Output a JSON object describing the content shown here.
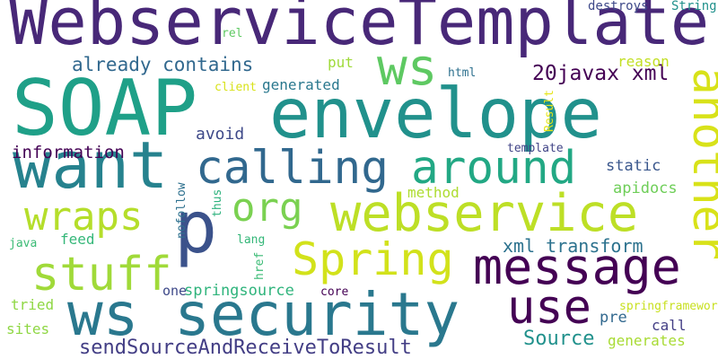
{
  "words": [
    {
      "text": "WebserviceTemplate",
      "color": "#482878"
    },
    {
      "text": "SOAP",
      "color": "#1fa088"
    },
    {
      "text": "envelope",
      "color": "#21918c"
    },
    {
      "text": "want",
      "color": "#26828e"
    },
    {
      "text": "ws security",
      "color": "#2a788e"
    },
    {
      "text": "webservice",
      "color": "#bddf26"
    },
    {
      "text": "message",
      "color": "#440154"
    },
    {
      "text": "p",
      "color": "#3b528b"
    },
    {
      "text": "ws",
      "color": "#5ec962"
    },
    {
      "text": "calling",
      "color": "#31688e"
    },
    {
      "text": "around",
      "color": "#22a884"
    },
    {
      "text": "another",
      "color": "#d8e219"
    },
    {
      "text": "Spring",
      "color": "#d2e21b"
    },
    {
      "text": "stuff",
      "color": "#a0da39"
    },
    {
      "text": "wraps",
      "color": "#b5de2b"
    },
    {
      "text": "org",
      "color": "#7ad151"
    },
    {
      "text": "use",
      "color": "#440154"
    },
    {
      "text": "already contains",
      "color": "#31688e"
    },
    {
      "text": "20javax xml",
      "color": "#440154"
    },
    {
      "text": "generated",
      "color": "#2a788e"
    },
    {
      "text": "xml transform",
      "color": "#2c728e"
    },
    {
      "text": "sendSourceAndReceiveToResult",
      "color": "#433e85"
    },
    {
      "text": "Source",
      "color": "#21918c"
    },
    {
      "text": "information",
      "color": "#440154"
    },
    {
      "text": "avoid",
      "color": "#3e4989"
    },
    {
      "text": "static",
      "color": "#39568c"
    },
    {
      "text": "apidocs",
      "color": "#6ece58"
    },
    {
      "text": "method",
      "color": "#addc30"
    },
    {
      "text": "feed",
      "color": "#35b779"
    },
    {
      "text": "put",
      "color": "#9fda3a"
    },
    {
      "text": "reason",
      "color": "#c2df23"
    },
    {
      "text": "html",
      "color": "#2d708e"
    },
    {
      "text": "destroys",
      "color": "#3e4989"
    },
    {
      "text": "String",
      "color": "#21918c"
    },
    {
      "text": "rel",
      "color": "#5ec962"
    },
    {
      "text": "client",
      "color": "#d8e219"
    },
    {
      "text": "Result",
      "color": "#e5e419"
    },
    {
      "text": "template",
      "color": "#414487"
    },
    {
      "text": "nofollow",
      "color": "#2d708e"
    },
    {
      "text": "thus",
      "color": "#2db27d"
    },
    {
      "text": "lang",
      "color": "#35b779"
    },
    {
      "text": "href",
      "color": "#3bbb75"
    },
    {
      "text": "java",
      "color": "#3bbb75"
    },
    {
      "text": "one",
      "color": "#3e4989"
    },
    {
      "text": "springsource",
      "color": "#2fb47c"
    },
    {
      "text": "core",
      "color": "#440154"
    },
    {
      "text": "tried",
      "color": "#8fd744"
    },
    {
      "text": "sites",
      "color": "#8fd744"
    },
    {
      "text": "pre",
      "color": "#31688e"
    },
    {
      "text": "springframework",
      "color": "#c8e020"
    },
    {
      "text": "call",
      "color": "#433e85"
    },
    {
      "text": "generates",
      "color": "#a8db34"
    }
  ]
}
